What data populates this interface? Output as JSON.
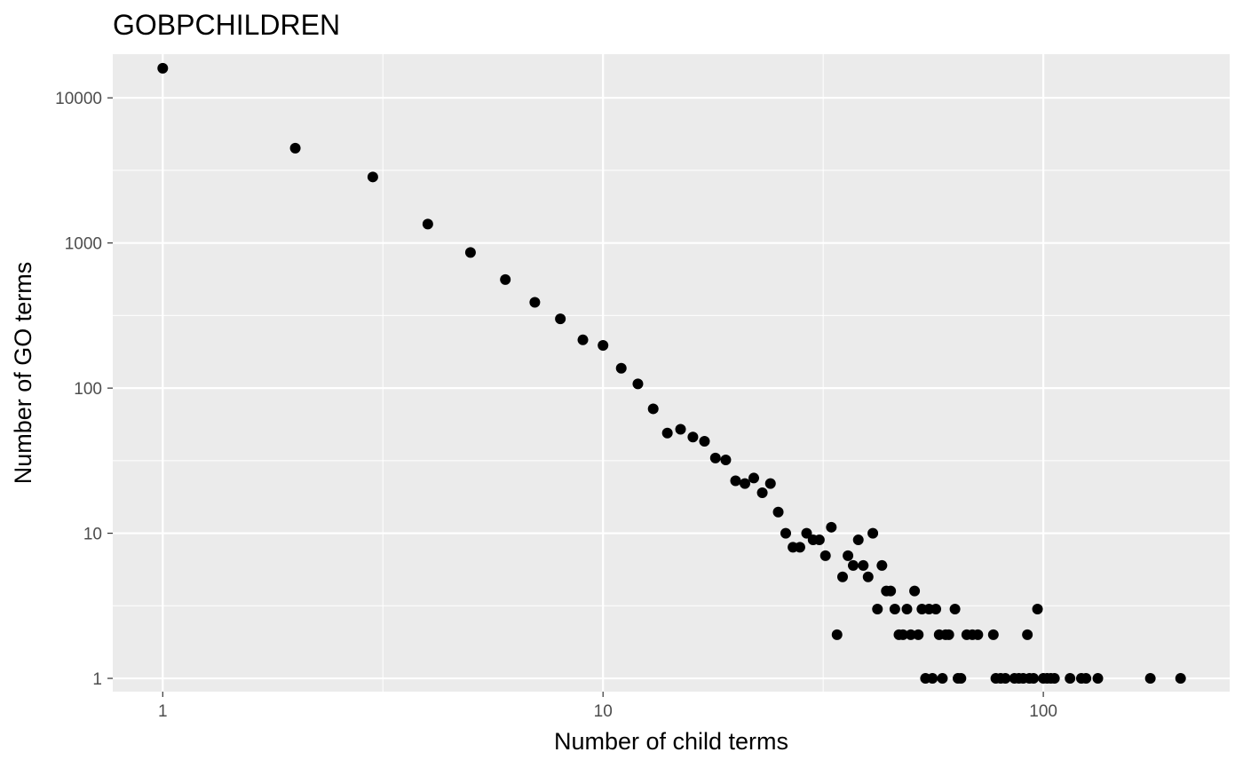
{
  "chart_data": {
    "type": "scatter",
    "title": "GOBPCHILDREN",
    "xlabel": "Number of child terms",
    "ylabel": "Number of GO terms",
    "xscale": "log10",
    "yscale": "log10",
    "xlim": [
      0.77,
      265
    ],
    "ylim": [
      0.81,
      20000
    ],
    "xticks": [
      {
        "value": 1,
        "label": "1"
      },
      {
        "value": 10,
        "label": "10"
      },
      {
        "value": 100,
        "label": "100"
      }
    ],
    "yticks": [
      {
        "value": 1,
        "label": "1"
      },
      {
        "value": 10,
        "label": "10"
      },
      {
        "value": 100,
        "label": "100"
      },
      {
        "value": 1000,
        "label": "1000"
      },
      {
        "value": 10000,
        "label": "10000"
      }
    ],
    "grid": true,
    "legend": "none",
    "colors": {
      "panel": "#EBEBEB",
      "grid": "#FFFFFF",
      "point": "#000000"
    },
    "points": [
      {
        "x": 1,
        "y": 16000
      },
      {
        "x": 2,
        "y": 4500
      },
      {
        "x": 3,
        "y": 2850
      },
      {
        "x": 4,
        "y": 1350
      },
      {
        "x": 5,
        "y": 860
      },
      {
        "x": 6,
        "y": 560
      },
      {
        "x": 7,
        "y": 390
      },
      {
        "x": 8,
        "y": 300
      },
      {
        "x": 9,
        "y": 215
      },
      {
        "x": 10,
        "y": 197
      },
      {
        "x": 11,
        "y": 137
      },
      {
        "x": 12,
        "y": 107
      },
      {
        "x": 13,
        "y": 72
      },
      {
        "x": 14,
        "y": 49
      },
      {
        "x": 15,
        "y": 52
      },
      {
        "x": 16,
        "y": 46
      },
      {
        "x": 17,
        "y": 43
      },
      {
        "x": 18,
        "y": 33
      },
      {
        "x": 19,
        "y": 32
      },
      {
        "x": 20,
        "y": 23
      },
      {
        "x": 21,
        "y": 22
      },
      {
        "x": 22,
        "y": 24
      },
      {
        "x": 23,
        "y": 19
      },
      {
        "x": 24,
        "y": 22
      },
      {
        "x": 25,
        "y": 14
      },
      {
        "x": 26,
        "y": 10
      },
      {
        "x": 27,
        "y": 8
      },
      {
        "x": 28,
        "y": 8
      },
      {
        "x": 29,
        "y": 10
      },
      {
        "x": 30,
        "y": 9
      },
      {
        "x": 31,
        "y": 9
      },
      {
        "x": 32,
        "y": 7
      },
      {
        "x": 33,
        "y": 11
      },
      {
        "x": 34,
        "y": 2
      },
      {
        "x": 35,
        "y": 5
      },
      {
        "x": 36,
        "y": 7
      },
      {
        "x": 37,
        "y": 6
      },
      {
        "x": 38,
        "y": 9
      },
      {
        "x": 39,
        "y": 6
      },
      {
        "x": 40,
        "y": 5
      },
      {
        "x": 41,
        "y": 10
      },
      {
        "x": 42,
        "y": 3
      },
      {
        "x": 43,
        "y": 6
      },
      {
        "x": 44,
        "y": 4
      },
      {
        "x": 45,
        "y": 4
      },
      {
        "x": 46,
        "y": 3
      },
      {
        "x": 47,
        "y": 2
      },
      {
        "x": 48,
        "y": 2
      },
      {
        "x": 49,
        "y": 3
      },
      {
        "x": 50,
        "y": 2
      },
      {
        "x": 51,
        "y": 4
      },
      {
        "x": 52,
        "y": 2
      },
      {
        "x": 53,
        "y": 3
      },
      {
        "x": 54,
        "y": 1
      },
      {
        "x": 55,
        "y": 3
      },
      {
        "x": 56,
        "y": 1
      },
      {
        "x": 57,
        "y": 3
      },
      {
        "x": 58,
        "y": 2
      },
      {
        "x": 59,
        "y": 1
      },
      {
        "x": 60,
        "y": 2
      },
      {
        "x": 61,
        "y": 2
      },
      {
        "x": 63,
        "y": 3
      },
      {
        "x": 64,
        "y": 1
      },
      {
        "x": 65,
        "y": 1
      },
      {
        "x": 67,
        "y": 2
      },
      {
        "x": 69,
        "y": 2
      },
      {
        "x": 71,
        "y": 2
      },
      {
        "x": 77,
        "y": 2
      },
      {
        "x": 78,
        "y": 1
      },
      {
        "x": 80,
        "y": 1
      },
      {
        "x": 82,
        "y": 1
      },
      {
        "x": 86,
        "y": 1
      },
      {
        "x": 88,
        "y": 1
      },
      {
        "x": 90,
        "y": 1
      },
      {
        "x": 92,
        "y": 2
      },
      {
        "x": 93,
        "y": 1
      },
      {
        "x": 95,
        "y": 1
      },
      {
        "x": 97,
        "y": 3
      },
      {
        "x": 100,
        "y": 1
      },
      {
        "x": 102,
        "y": 1
      },
      {
        "x": 104,
        "y": 1
      },
      {
        "x": 106,
        "y": 1
      },
      {
        "x": 115,
        "y": 1
      },
      {
        "x": 122,
        "y": 1
      },
      {
        "x": 125,
        "y": 1
      },
      {
        "x": 133,
        "y": 1
      },
      {
        "x": 175,
        "y": 1
      },
      {
        "x": 205,
        "y": 1
      }
    ]
  }
}
